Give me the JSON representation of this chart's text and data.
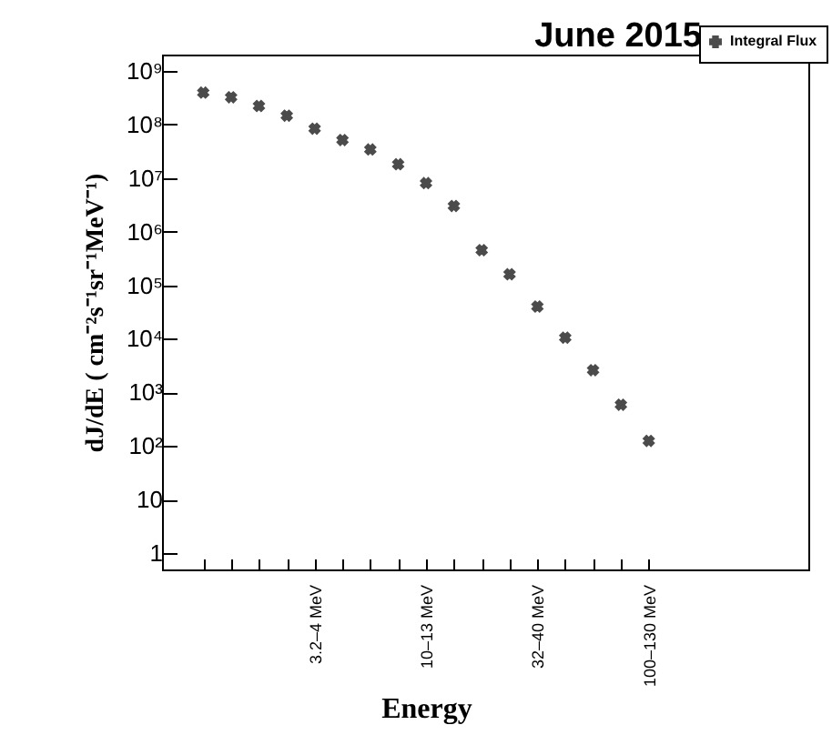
{
  "chart_data": {
    "type": "scatter",
    "title": "June 2015",
    "xlabel": "Energy",
    "ylabel": "dJ/dE ( cm⁻²s⁻¹sr⁻¹MeV⁻¹)",
    "categories": [
      null,
      null,
      null,
      null,
      "3.2–4 MeV",
      null,
      null,
      null,
      "10–13 MeV",
      null,
      null,
      null,
      "32–40 MeV",
      null,
      null,
      null,
      "100–130 MeV"
    ],
    "series": [
      {
        "name": "Integral Flux",
        "color": "#000000",
        "values": [
          390000000,
          320000000,
          220000000,
          145000000,
          83000000,
          51000000,
          34000000,
          18000000,
          8000000,
          3000000,
          450000,
          160000,
          40000,
          10500,
          2600,
          590,
          125
        ]
      }
    ],
    "ylim": [
      0.5,
      2000000000
    ],
    "yticks": [
      1,
      10,
      {
        "value": 100,
        "label": "10²"
      },
      {
        "value": 1000,
        "label": "10³"
      },
      {
        "value": 10000,
        "label": "10⁴"
      },
      {
        "value": 100000,
        "label": "10⁵"
      },
      {
        "value": 1000000,
        "label": "10⁶"
      },
      {
        "value": 10000000,
        "label": "10⁷"
      },
      {
        "value": 100000000,
        "label": "10⁸"
      },
      {
        "value": 1000000000,
        "label": "10⁹"
      }
    ],
    "log": "y",
    "grid": false,
    "legend": "top right",
    "marker": "cross"
  }
}
